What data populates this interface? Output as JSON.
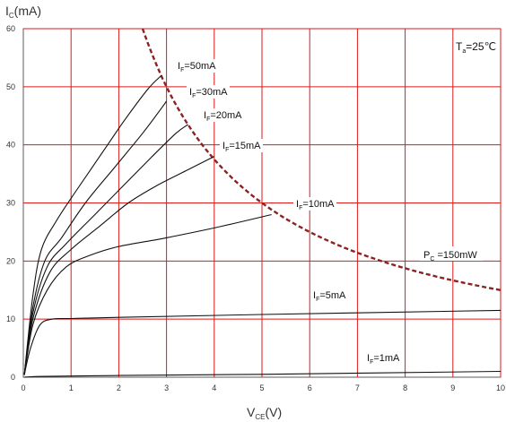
{
  "chart_data": {
    "type": "line",
    "title": "",
    "xlabel": {
      "main": "V",
      "sub": "CE",
      "unit": "(V)"
    },
    "ylabel": {
      "main": "I",
      "sub": "C",
      "unit": "(mA)"
    },
    "xlim": [
      0,
      10
    ],
    "ylim": [
      0,
      60
    ],
    "x_ticks": [
      0,
      1,
      2,
      3,
      4,
      5,
      6,
      7,
      8,
      9,
      10
    ],
    "y_ticks": [
      0,
      10,
      20,
      30,
      40,
      50,
      60
    ],
    "grid": true,
    "colors": {
      "grid": "#dd1a1a",
      "curve": "#111111",
      "limit": "#8b2323"
    },
    "temperature": {
      "main": "T",
      "sub": "a",
      "rest": "=25℃"
    },
    "series": [
      {
        "name": {
          "main": "I",
          "sub": "F",
          "rest": "=50mA"
        },
        "x": [
          0.02,
          0.2,
          0.38,
          0.7,
          1.1,
          1.6,
          2.1,
          2.6,
          2.9
        ],
        "y": [
          0.4,
          14,
          22,
          27,
          32,
          38,
          44,
          49.5,
          52
        ]
      },
      {
        "name": {
          "main": "I",
          "sub": "F",
          "rest": "=30mA"
        },
        "x": [
          0.02,
          0.2,
          0.45,
          0.8,
          1.3,
          1.9,
          2.5,
          3.0
        ],
        "y": [
          0.4,
          12,
          20,
          24,
          30,
          36,
          42,
          47.5
        ]
      },
      {
        "name": {
          "main": "I",
          "sub": "F",
          "rest": "=20mA"
        },
        "x": [
          0.02,
          0.2,
          0.5,
          0.9,
          1.5,
          2.1,
          2.7,
          3.2,
          3.45
        ],
        "y": [
          0.4,
          11,
          19,
          23,
          28,
          33,
          38,
          42,
          43.5
        ]
      },
      {
        "name": {
          "main": "I",
          "sub": "F",
          "rest": "=15mA"
        },
        "x": [
          0.02,
          0.2,
          0.55,
          1.0,
          1.6,
          2.2,
          2.8,
          3.4,
          4.0
        ],
        "y": [
          0.4,
          10,
          18,
          22,
          26,
          30,
          33,
          35.5,
          38
        ]
      },
      {
        "name": {
          "main": "I",
          "sub": "F",
          "rest": "=10mA"
        },
        "x": [
          0.02,
          0.2,
          0.5,
          0.9,
          1.4,
          2.0,
          3.0,
          4.0,
          5.2
        ],
        "y": [
          0.4,
          9,
          15,
          19,
          21,
          22.5,
          24,
          25.7,
          28
        ]
      },
      {
        "name": {
          "main": "I",
          "sub": "F",
          "rest": "=5mA"
        },
        "x": [
          0.02,
          0.15,
          0.35,
          0.6,
          1.0,
          2.0,
          5.0,
          10.0
        ],
        "y": [
          0.4,
          5,
          9,
          10,
          10.1,
          10.3,
          10.8,
          11.5
        ]
      },
      {
        "name": {
          "main": "I",
          "sub": "F",
          "rest": "=1mA"
        },
        "x": [
          0.02,
          0.1,
          0.3,
          1.0,
          2.0,
          5.0,
          10.0
        ],
        "y": [
          0.0,
          0.05,
          0.12,
          0.2,
          0.3,
          0.5,
          1.0
        ]
      }
    ],
    "power_limit": {
      "name": {
        "main": "P",
        "sub": "C",
        "rest": " =150mW"
      },
      "power_mW": 150,
      "x_range": [
        2.5,
        10
      ]
    }
  }
}
